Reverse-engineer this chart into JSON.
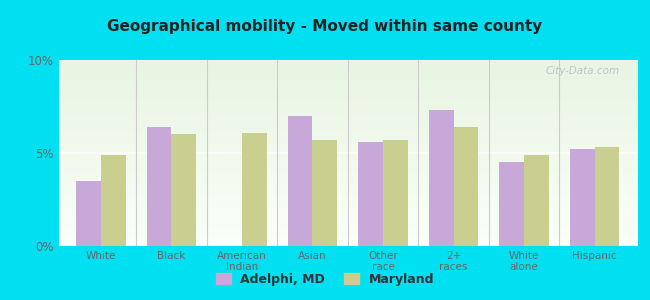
{
  "title": "Geographical mobility - Moved within same county",
  "categories": [
    "White",
    "Black",
    "American\nIndian",
    "Asian",
    "Other\nrace",
    "2+\nraces",
    "White\nalone",
    "Hispanic"
  ],
  "adelphi_values": [
    3.5,
    6.4,
    0,
    7.0,
    5.6,
    7.3,
    4.5,
    5.2
  ],
  "maryland_values": [
    4.9,
    6.0,
    6.1,
    5.7,
    5.7,
    6.4,
    4.9,
    5.3
  ],
  "adelphi_color": "#c8a8d8",
  "maryland_color": "#c8cf8f",
  "bg_outer": "#00e0f0",
  "ylim": [
    0,
    10
  ],
  "yticks": [
    0,
    5,
    10
  ],
  "ytick_labels": [
    "0%",
    "5%",
    "10%"
  ],
  "bar_width": 0.35,
  "legend_labels": [
    "Adelphi, MD",
    "Maryland"
  ],
  "watermark": "City-Data.com",
  "title_color": "#222222",
  "tick_color": "#666666",
  "separator_color": "#cccccc",
  "grid_color": "#dddddd"
}
